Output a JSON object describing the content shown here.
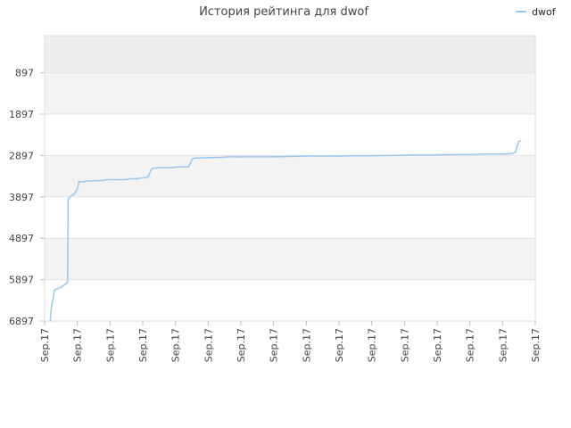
{
  "chart_data": {
    "type": "line",
    "title": "История рейтинга для dwof",
    "xlabel": "",
    "ylabel": "",
    "y_inverted": true,
    "ylim": [
      6897,
      0
    ],
    "yticks": [
      897,
      1897,
      2897,
      3897,
      4897,
      5897,
      6897
    ],
    "xticks": [
      "Sep.17",
      "Sep.17",
      "Sep.17",
      "Sep.17",
      "Sep.17",
      "Sep.17",
      "Sep.17",
      "Sep.17",
      "Sep.17",
      "Sep.17",
      "Sep.17",
      "Sep.17",
      "Sep.17",
      "Sep.17",
      "Sep.17",
      "Sep.17"
    ],
    "xlim": [
      0,
      15
    ],
    "grid": true,
    "legend": "top-right",
    "series": [
      {
        "name": "dwof",
        "color": "#99c9f0",
        "x": [
          0.17,
          0.2,
          0.22,
          0.25,
          0.28,
          0.3,
          0.5,
          0.68,
          0.7,
          0.72,
          0.8,
          0.9,
          0.95,
          1.0,
          1.05,
          1.2,
          1.3,
          1.4,
          1.8,
          1.9,
          2.5,
          2.6,
          2.8,
          3.15,
          3.2,
          3.25,
          3.3,
          3.4,
          3.5,
          3.9,
          4.0,
          4.1,
          4.4,
          4.5,
          4.55,
          4.6,
          4.7,
          5.0,
          5.5,
          5.6,
          6.0,
          7.0,
          7.5,
          8.0,
          9.0,
          9.5,
          10.0,
          11.0,
          11.4,
          12.0,
          13.0,
          13.4,
          14.0,
          14.3,
          14.4,
          14.45,
          14.5,
          14.55
        ],
        "values": [
          6897,
          6650,
          6500,
          6400,
          6250,
          6150,
          6080,
          5980,
          5960,
          3950,
          3880,
          3830,
          3780,
          3700,
          3530,
          3530,
          3510,
          3510,
          3500,
          3480,
          3480,
          3460,
          3460,
          3420,
          3350,
          3250,
          3200,
          3200,
          3190,
          3190,
          3180,
          3170,
          3170,
          3000,
          2970,
          2960,
          2960,
          2950,
          2940,
          2930,
          2930,
          2930,
          2920,
          2910,
          2910,
          2900,
          2900,
          2890,
          2880,
          2880,
          2870,
          2860,
          2860,
          2850,
          2810,
          2650,
          2550,
          2550
        ]
      }
    ]
  }
}
